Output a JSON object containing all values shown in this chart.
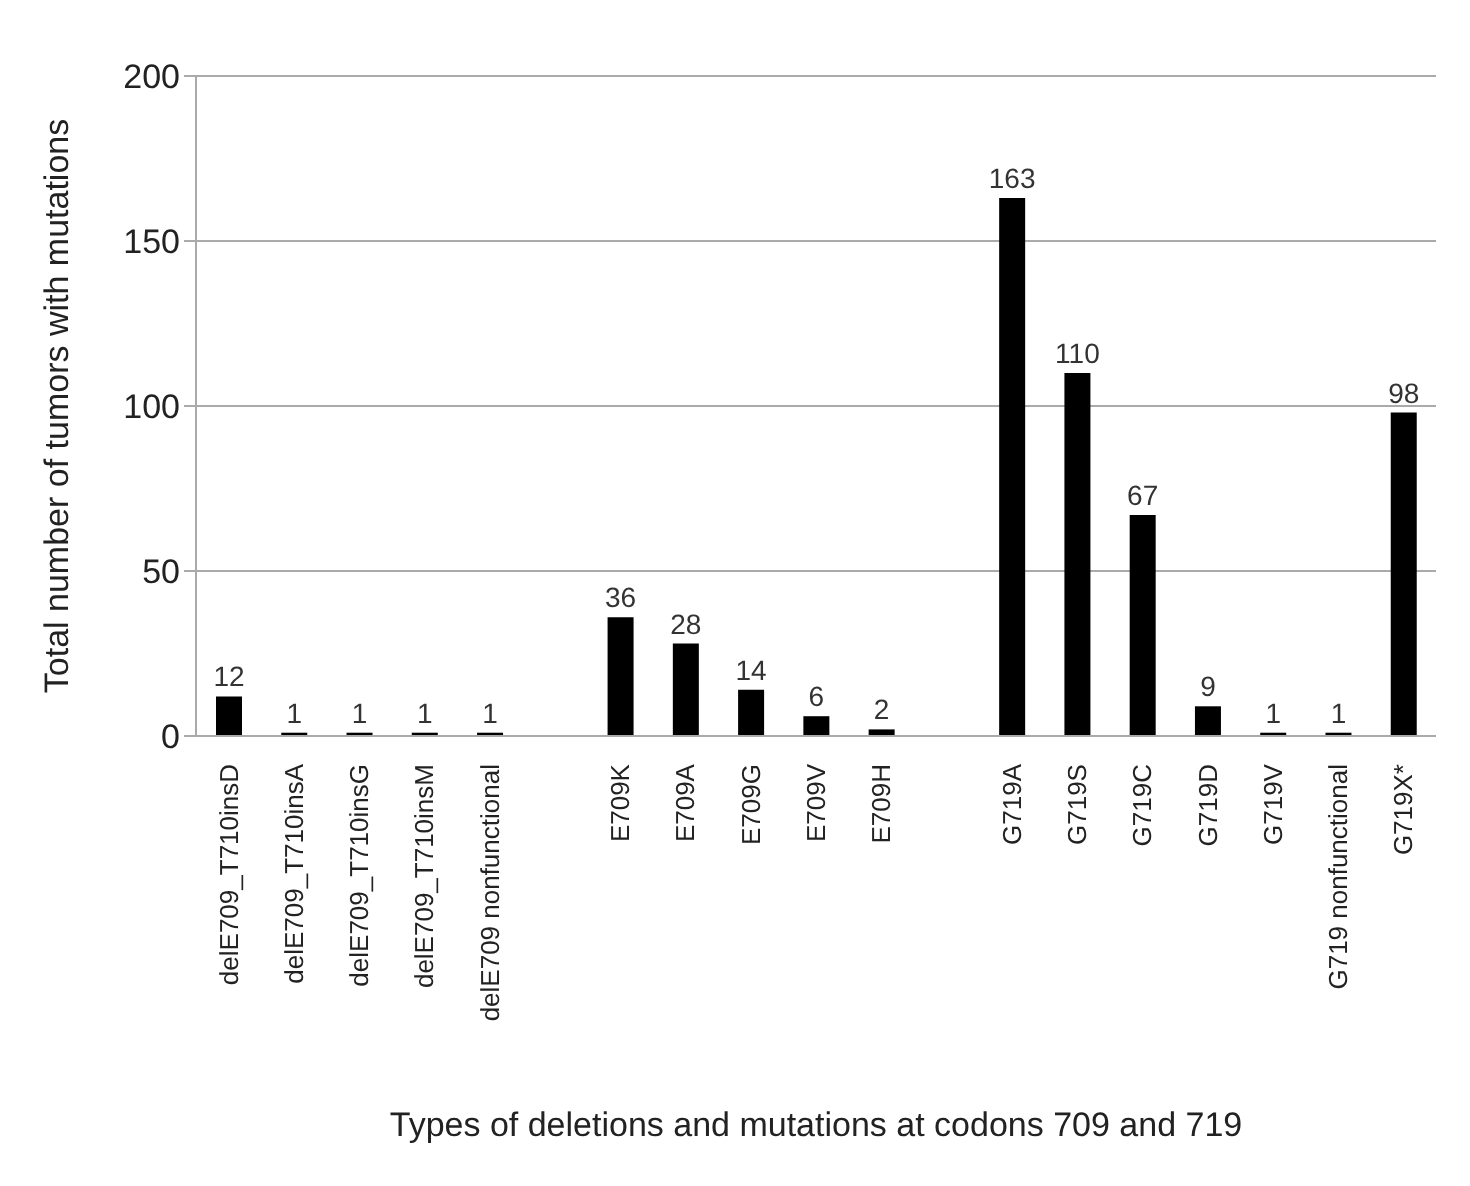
{
  "chart_data": {
    "type": "bar",
    "xlabel": "Types of deletions and mutations at codons 709 and 719",
    "ylabel": "Total number of tumors with mutations",
    "categories": [
      "delE709_T710insD",
      "delE709_T710insA",
      "delE709_T710insG",
      "delE709_T710insM",
      "delE709 nonfunctional",
      null,
      "E709K",
      "E709A",
      "E709G",
      "E709V",
      "E709H",
      null,
      "G719A",
      "G719S",
      "G719C",
      "G719D",
      "G719V",
      "G719 nonfunctional",
      "G719X*"
    ],
    "values": [
      12,
      1,
      1,
      1,
      1,
      null,
      36,
      28,
      14,
      6,
      2,
      null,
      163,
      110,
      67,
      9,
      1,
      1,
      98
    ],
    "color": "#000000",
    "ylim": [
      0,
      200
    ],
    "yticks": [
      0,
      50,
      100,
      150,
      200
    ],
    "grid": "y",
    "data_labels": true
  }
}
